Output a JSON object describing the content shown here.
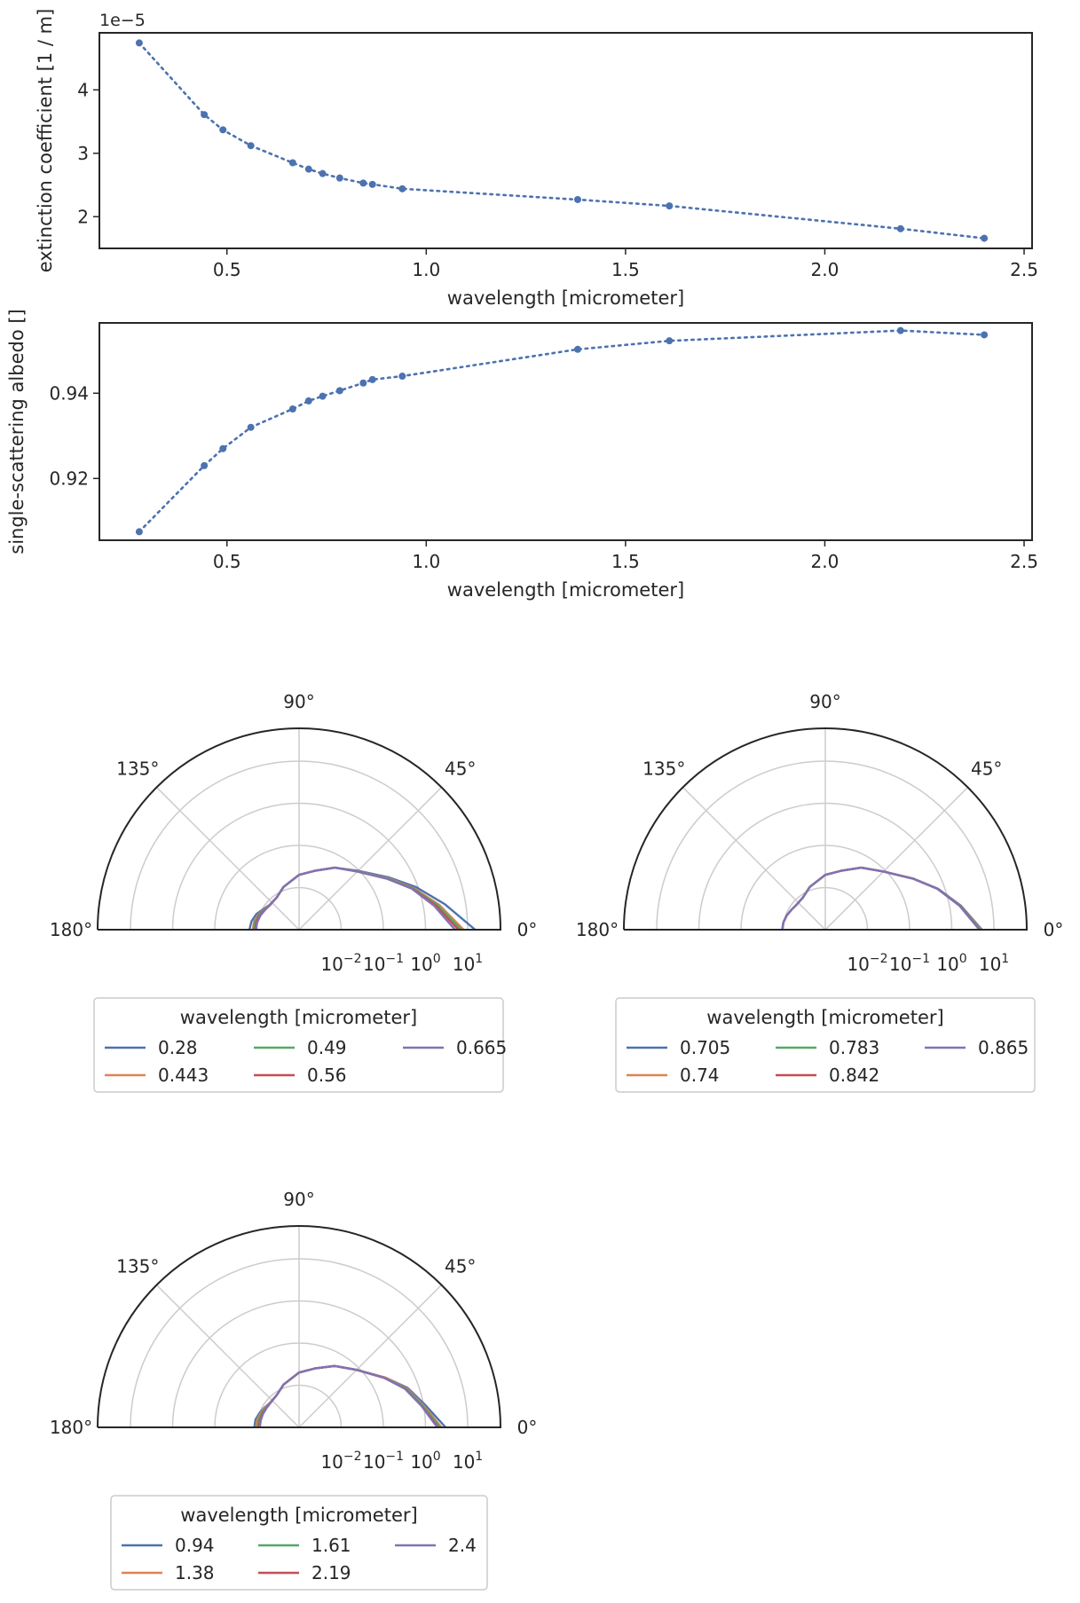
{
  "chart_data": [
    {
      "type": "line",
      "title": "",
      "xlabel": "wavelength [micrometer]",
      "ylabel": "extinction coefficient [1 / m]",
      "offset_label": "1e−5",
      "line_style": "dotted-with-markers",
      "color": "#4c72b0",
      "x": [
        0.28,
        0.443,
        0.49,
        0.56,
        0.665,
        0.705,
        0.74,
        0.783,
        0.842,
        0.865,
        0.94,
        1.38,
        1.61,
        2.19,
        2.4
      ],
      "y": [
        4.74,
        3.61,
        3.37,
        3.12,
        2.85,
        2.75,
        2.68,
        2.61,
        2.53,
        2.51,
        2.44,
        2.27,
        2.17,
        1.81,
        1.66
      ],
      "xlim": [
        0.18,
        2.52
      ],
      "ylim": [
        1.5,
        4.9
      ],
      "xticks": [
        0.5,
        1.0,
        1.5,
        2.0,
        2.5
      ],
      "xtick_labels": [
        "0.5",
        "1.0",
        "1.5",
        "2.0",
        "2.5"
      ],
      "yticks": [
        2,
        3,
        4
      ],
      "ytick_labels": [
        "2",
        "3",
        "4"
      ],
      "grid": false
    },
    {
      "type": "line",
      "title": "",
      "xlabel": "wavelength [micrometer]",
      "ylabel": "single-scattering albedo []",
      "line_style": "dotted-with-markers",
      "color": "#4c72b0",
      "x": [
        0.28,
        0.443,
        0.49,
        0.56,
        0.665,
        0.705,
        0.74,
        0.783,
        0.842,
        0.865,
        0.94,
        1.38,
        1.61,
        2.19,
        2.4
      ],
      "y": [
        0.9075,
        0.923,
        0.927,
        0.932,
        0.9363,
        0.9382,
        0.9393,
        0.9406,
        0.9424,
        0.9432,
        0.944,
        0.9503,
        0.9523,
        0.9547,
        0.9537
      ],
      "xlim": [
        0.18,
        2.52
      ],
      "ylim": [
        0.9055,
        0.9565
      ],
      "xticks": [
        0.5,
        1.0,
        1.5,
        2.0,
        2.5
      ],
      "xtick_labels": [
        "0.5",
        "1.0",
        "1.5",
        "2.0",
        "2.5"
      ],
      "yticks": [
        0.92,
        0.94
      ],
      "ytick_labels": [
        "0.92",
        "0.94"
      ],
      "grid": false
    },
    {
      "type": "polar-line",
      "radial_scale": "log",
      "angle_range_deg": [
        0,
        180
      ],
      "angle_tick_labels": [
        "0°",
        "45°",
        "90°",
        "135°",
        "180°"
      ],
      "radial_tick_labels": [
        "10",
        "10",
        "10",
        "10"
      ],
      "radial_tick_exponents": [
        "−2",
        "−1",
        "0",
        "1"
      ],
      "legend_title": "wavelength [micrometer]",
      "legend_placement": "below",
      "series": [
        {
          "name": "0.28",
          "color": "#4c72b0",
          "angle_deg": [
            0,
            10,
            20,
            30,
            45,
            60,
            75,
            90,
            110,
            125,
            140,
            150,
            160,
            170,
            180
          ],
          "value": [
            15,
            3.2,
            0.9,
            0.3,
            0.095,
            0.05,
            0.028,
            0.02,
            0.012,
            0.0085,
            0.0082,
            0.0095,
            0.012,
            0.014,
            0.015
          ]
        },
        {
          "name": "0.443",
          "color": "#dd8452",
          "angle_deg": [
            0,
            10,
            20,
            30,
            45,
            60,
            75,
            90,
            110,
            125,
            140,
            150,
            160,
            170,
            180
          ],
          "value": [
            8.0,
            2.4,
            0.78,
            0.28,
            0.092,
            0.05,
            0.028,
            0.02,
            0.012,
            0.0085,
            0.0082,
            0.0092,
            0.0108,
            0.0122,
            0.0125
          ]
        },
        {
          "name": "0.49",
          "color": "#55a868",
          "angle_deg": [
            0,
            10,
            20,
            30,
            45,
            60,
            75,
            90,
            110,
            125,
            140,
            150,
            160,
            170,
            180
          ],
          "value": [
            7.0,
            2.2,
            0.75,
            0.27,
            0.091,
            0.05,
            0.028,
            0.02,
            0.012,
            0.0085,
            0.0081,
            0.009,
            0.0104,
            0.0115,
            0.012
          ]
        },
        {
          "name": "0.56",
          "color": "#c44e52",
          "angle_deg": [
            0,
            10,
            20,
            30,
            45,
            60,
            75,
            90,
            110,
            125,
            140,
            150,
            160,
            170,
            180
          ],
          "value": [
            6.0,
            2.0,
            0.72,
            0.26,
            0.09,
            0.05,
            0.028,
            0.02,
            0.012,
            0.0085,
            0.008,
            0.0088,
            0.01,
            0.0108,
            0.011
          ]
        },
        {
          "name": "0.665",
          "color": "#8172b3",
          "angle_deg": [
            0,
            10,
            20,
            30,
            45,
            60,
            75,
            90,
            110,
            125,
            140,
            150,
            160,
            170,
            180
          ],
          "value": [
            5.0,
            1.8,
            0.7,
            0.26,
            0.09,
            0.05,
            0.028,
            0.02,
            0.012,
            0.0085,
            0.008,
            0.0086,
            0.0095,
            0.0102,
            0.0105
          ]
        }
      ]
    },
    {
      "type": "polar-line",
      "radial_scale": "log",
      "angle_range_deg": [
        0,
        180
      ],
      "angle_tick_labels": [
        "0°",
        "45°",
        "90°",
        "135°",
        "180°"
      ],
      "radial_tick_labels": [
        "10",
        "10",
        "10",
        "10"
      ],
      "radial_tick_exponents": [
        "−2",
        "−1",
        "0",
        "1"
      ],
      "legend_title": "wavelength [micrometer]",
      "legend_placement": "below",
      "series": [
        {
          "name": "0.705",
          "color": "#4c72b0",
          "angle_deg": [
            0,
            10,
            20,
            30,
            45,
            60,
            75,
            90,
            110,
            125,
            140,
            150,
            160,
            170,
            180
          ],
          "value": [
            5.2,
            1.85,
            0.7,
            0.26,
            0.09,
            0.05,
            0.028,
            0.02,
            0.012,
            0.0085,
            0.008,
            0.0086,
            0.0095,
            0.0102,
            0.0105
          ]
        },
        {
          "name": "0.74",
          "color": "#dd8452",
          "angle_deg": [
            0,
            10,
            20,
            30,
            45,
            60,
            75,
            90,
            110,
            125,
            140,
            150,
            160,
            170,
            180
          ],
          "value": [
            5.0,
            1.8,
            0.69,
            0.26,
            0.09,
            0.05,
            0.028,
            0.02,
            0.012,
            0.0085,
            0.008,
            0.0086,
            0.0095,
            0.0102,
            0.0105
          ]
        },
        {
          "name": "0.783",
          "color": "#55a868",
          "angle_deg": [
            0,
            10,
            20,
            30,
            45,
            60,
            75,
            90,
            110,
            125,
            140,
            150,
            160,
            170,
            180
          ],
          "value": [
            4.8,
            1.78,
            0.69,
            0.26,
            0.09,
            0.05,
            0.028,
            0.02,
            0.012,
            0.0085,
            0.008,
            0.0086,
            0.0095,
            0.0102,
            0.0105
          ]
        },
        {
          "name": "0.842",
          "color": "#c44e52",
          "angle_deg": [
            0,
            10,
            20,
            30,
            45,
            60,
            75,
            90,
            110,
            125,
            140,
            150,
            160,
            170,
            180
          ],
          "value": [
            4.6,
            1.75,
            0.68,
            0.26,
            0.09,
            0.05,
            0.028,
            0.02,
            0.012,
            0.0085,
            0.008,
            0.0086,
            0.0095,
            0.0102,
            0.0105
          ]
        },
        {
          "name": "0.865",
          "color": "#8172b3",
          "angle_deg": [
            0,
            10,
            20,
            30,
            45,
            60,
            75,
            90,
            110,
            125,
            140,
            150,
            160,
            170,
            180
          ],
          "value": [
            4.5,
            1.73,
            0.68,
            0.26,
            0.09,
            0.05,
            0.028,
            0.02,
            0.012,
            0.0085,
            0.008,
            0.0086,
            0.0095,
            0.0102,
            0.0105
          ]
        }
      ]
    },
    {
      "type": "polar-line",
      "radial_scale": "log",
      "angle_range_deg": [
        0,
        180
      ],
      "angle_tick_labels": [
        "0°",
        "45°",
        "90°",
        "135°",
        "180°"
      ],
      "radial_tick_labels": [
        "10",
        "10",
        "10",
        "10"
      ],
      "radial_tick_exponents": [
        "−2",
        "−1",
        "0",
        "1"
      ],
      "legend_title": "wavelength [micrometer]",
      "legend_placement": "below",
      "series": [
        {
          "name": "0.94",
          "color": "#4c72b0",
          "angle_deg": [
            0,
            10,
            20,
            30,
            45,
            60,
            75,
            90,
            110,
            125,
            140,
            150,
            160,
            170,
            180
          ],
          "value": [
            3.0,
            1.1,
            0.55,
            0.23,
            0.085,
            0.048,
            0.028,
            0.02,
            0.012,
            0.0085,
            0.008,
            0.0088,
            0.01,
            0.0112,
            0.0115
          ]
        },
        {
          "name": "1.38",
          "color": "#dd8452",
          "angle_deg": [
            0,
            10,
            20,
            30,
            45,
            60,
            75,
            90,
            110,
            125,
            140,
            150,
            160,
            170,
            180
          ],
          "value": [
            2.4,
            1.0,
            0.52,
            0.23,
            0.085,
            0.048,
            0.028,
            0.02,
            0.012,
            0.0085,
            0.008,
            0.0086,
            0.0095,
            0.0102,
            0.0105
          ]
        },
        {
          "name": "1.61",
          "color": "#55a868",
          "angle_deg": [
            0,
            10,
            20,
            30,
            45,
            60,
            75,
            90,
            110,
            125,
            140,
            150,
            160,
            170,
            180
          ],
          "value": [
            2.2,
            0.95,
            0.5,
            0.22,
            0.085,
            0.048,
            0.028,
            0.02,
            0.012,
            0.0085,
            0.0079,
            0.0083,
            0.009,
            0.0095,
            0.0098
          ]
        },
        {
          "name": "2.19",
          "color": "#c44e52",
          "angle_deg": [
            0,
            10,
            20,
            30,
            45,
            60,
            75,
            90,
            110,
            125,
            140,
            150,
            160,
            170,
            180
          ],
          "value": [
            2.0,
            0.9,
            0.48,
            0.22,
            0.085,
            0.048,
            0.028,
            0.02,
            0.012,
            0.0085,
            0.0078,
            0.008,
            0.0085,
            0.0088,
            0.009
          ]
        },
        {
          "name": "2.4",
          "color": "#8172b3",
          "angle_deg": [
            0,
            10,
            20,
            30,
            45,
            60,
            75,
            90,
            110,
            125,
            140,
            150,
            160,
            170,
            180
          ],
          "value": [
            1.9,
            0.88,
            0.47,
            0.22,
            0.085,
            0.048,
            0.028,
            0.02,
            0.012,
            0.0085,
            0.0078,
            0.0079,
            0.0082,
            0.0084,
            0.0085
          ]
        }
      ]
    }
  ]
}
